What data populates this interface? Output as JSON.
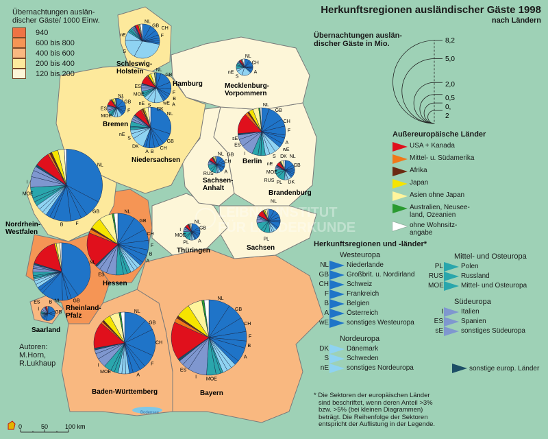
{
  "title": "Herkunftsregionen ausländischer Gäste 1998",
  "subtitle": "nach Ländern",
  "density_legend": {
    "title": "Übernachtungen ausländischer Gäste/ 1000 Einw.",
    "title_line1": "Übernachtungen auslän-",
    "title_line2": "discher Gäste/ 1000 Einw.",
    "classes": [
      {
        "label": "940",
        "color": "#ee7344"
      },
      {
        "label": "600 bis 800",
        "color": "#f59555"
      },
      {
        "label": "400 bis 600",
        "color": "#f9b880"
      },
      {
        "label": "200 bis 400",
        "color": "#fde99c"
      },
      {
        "label": "120 bis 200",
        "color": "#fdf6d8"
      }
    ]
  },
  "size_legend": {
    "title_line1": "Übernachtungen auslän-",
    "title_line2": "discher Gäste in Mio.",
    "values": [
      "8,2",
      "5,0",
      "2,0",
      "0,5",
      "0,",
      "2"
    ],
    "circles": [
      8.2,
      5.0,
      2.0,
      1.0,
      0.5,
      0.2
    ]
  },
  "non_european": {
    "title": "Außereuropäische Länder",
    "items": [
      {
        "label": "USA + Kanada",
        "color": "#e0101c"
      },
      {
        "label": "Mittel- u. Südamerika",
        "color": "#f07818"
      },
      {
        "label": "Afrika",
        "color": "#6b2a12"
      },
      {
        "label": "Japan",
        "color": "#f6e400"
      },
      {
        "label": "Asien ohne Japan",
        "color": "#fff59c"
      },
      {
        "label": "Australien, Neusee-land, Ozeanien",
        "color": "#2a9a30"
      },
      {
        "label": "ohne Wohnsitz-angabe",
        "color": "#ffffff"
      }
    ]
  },
  "origin_legend": {
    "title": "Herkunftsregionen und -länder*",
    "groups": [
      {
        "name": "Westeuropa",
        "color": "#1f74c8",
        "items": [
          {
            "code": "NL",
            "label": "Niederlande"
          },
          {
            "code": "GB",
            "label": "Großbrit. u. Nordirland"
          },
          {
            "code": "CH",
            "label": "Schweiz"
          },
          {
            "code": "F",
            "label": "Frankreich"
          },
          {
            "code": "B",
            "label": "Belgien"
          },
          {
            "code": "A",
            "label": "Österreich"
          },
          {
            "code": "wE",
            "label": "sonstiges Westeuropa"
          }
        ]
      },
      {
        "name": "Nordeuropa",
        "color": "#8fd3f2",
        "items": [
          {
            "code": "DK",
            "label": "Dänemark"
          },
          {
            "code": "S",
            "label": "Schweden"
          },
          {
            "code": "nE",
            "label": "sonstiges Nordeuropa"
          }
        ]
      },
      {
        "name": "Mittel- und Osteuropa",
        "color": "#2aa6ac",
        "items": [
          {
            "code": "PL",
            "label": "Polen"
          },
          {
            "code": "RUS",
            "label": "Russland"
          },
          {
            "code": "MOE",
            "label": "Mittel- und Osteuropa"
          }
        ]
      },
      {
        "name": "Südeuropa",
        "color": "#7f97cf",
        "items": [
          {
            "code": "I",
            "label": "Italien"
          },
          {
            "code": "ES",
            "label": "Spanien"
          },
          {
            "code": "sE",
            "label": "sonstiges Südeuropa"
          }
        ]
      }
    ],
    "other": {
      "label": "sonstige europ. Länder",
      "color": "#1d4f66"
    }
  },
  "footnote": [
    "* Die Sektoren der europäischen Länder",
    "sind beschriftet, wenn deren Anteil >3%",
    "bzw. >5% (bei kleinen Diagrammen)",
    "beträgt. Die Reihenfolge der Sektoren",
    "entspricht der Auflistung in der Legende."
  ],
  "authors": [
    "Autoren:",
    "M.Horn,",
    "R.Lukhaup"
  ],
  "scale": {
    "labels": [
      "0",
      "50",
      "100 km"
    ]
  },
  "watermark": [
    "LEIBNIZ-INSTITUT",
    "FÜR LÄNDERKUNDE"
  ],
  "lake_label": "Bodensee",
  "chart_data": {
    "type": "pie",
    "categories": [
      "NL",
      "GB",
      "CH",
      "F",
      "B",
      "A",
      "wE",
      "DK",
      "S",
      "nE",
      "PL",
      "RUS",
      "MOE",
      "I",
      "ES",
      "sE",
      "sonstige europ.",
      "USA + Kanada",
      "Mittel- u. Südamerika",
      "Afrika",
      "Japan",
      "Asien ohne Japan",
      "Australien",
      "ohne Wohnsitzangabe"
    ],
    "states": [
      {
        "name": "Schleswig-Holstein",
        "density": "200 bis 400",
        "total_mio": 1.7,
        "shares": [
          8,
          6,
          5,
          3,
          2,
          2,
          2,
          30,
          18,
          8,
          2,
          1,
          2,
          1,
          1,
          1,
          1,
          3,
          0,
          0,
          1,
          1,
          0,
          2
        ]
      },
      {
        "name": "Hamburg",
        "density": "940",
        "total_mio": 1.3,
        "shares": [
          5,
          14,
          7,
          6,
          3,
          4,
          3,
          10,
          8,
          4,
          2,
          2,
          3,
          4,
          3,
          1,
          1,
          9,
          1,
          1,
          3,
          4,
          1,
          1
        ]
      },
      {
        "name": "Mecklenburg-Vorpommern",
        "density": "120 bis 200",
        "total_mio": 0.4,
        "shares": [
          10,
          4,
          9,
          3,
          2,
          6,
          3,
          18,
          12,
          5,
          6,
          2,
          4,
          2,
          1,
          1,
          1,
          4,
          0,
          0,
          1,
          2,
          0,
          4
        ]
      },
      {
        "name": "Bremen",
        "density": "200 bis 400",
        "total_mio": 0.5,
        "shares": [
          12,
          10,
          4,
          5,
          3,
          3,
          3,
          8,
          5,
          4,
          3,
          2,
          5,
          4,
          6,
          2,
          1,
          10,
          1,
          1,
          3,
          3,
          1,
          1
        ]
      },
      {
        "name": "Niedersachsen",
        "density": "200 bis 400",
        "total_mio": 2.4,
        "shares": [
          30,
          9,
          4,
          4,
          4,
          3,
          2,
          10,
          4,
          3,
          2,
          1,
          4,
          2,
          2,
          1,
          1,
          6,
          1,
          1,
          1,
          3,
          0,
          2
        ]
      },
      {
        "name": "Berlin",
        "density": "120 bis 200",
        "total_mio": 3.3,
        "shares": [
          5,
          11,
          5,
          6,
          2,
          4,
          3,
          4,
          4,
          3,
          3,
          2,
          4,
          8,
          5,
          3,
          1,
          14,
          2,
          1,
          3,
          4,
          1,
          1
        ]
      },
      {
        "name": "Sachsen-Anhalt",
        "density": "120 bis 200",
        "total_mio": 0.4,
        "shares": [
          12,
          6,
          5,
          6,
          3,
          6,
          3,
          4,
          3,
          3,
          8,
          6,
          10,
          4,
          3,
          1,
          1,
          7,
          1,
          1,
          2,
          3,
          0,
          2
        ]
      },
      {
        "name": "Brandenburg",
        "density": "120 bis 200",
        "total_mio": 0.55,
        "shares": [
          16,
          5,
          4,
          4,
          3,
          4,
          3,
          6,
          3,
          3,
          12,
          6,
          8,
          3,
          2,
          1,
          1,
          6,
          1,
          1,
          1,
          4,
          0,
          3
        ]
      },
      {
        "name": "Nordrhein-Westfalen",
        "density": "200 bis 400",
        "total_mio": 7.5,
        "shares": [
          34,
          8,
          3,
          5,
          8,
          2,
          2,
          2,
          2,
          2,
          2,
          2,
          5,
          5,
          3,
          2,
          1,
          7,
          1,
          1,
          3,
          3,
          0,
          1
        ]
      },
      {
        "name": "Hessen",
        "density": "600 bis 800",
        "total_mio": 5.5,
        "shares": [
          9,
          8,
          6,
          5,
          3,
          4,
          2,
          2,
          2,
          2,
          2,
          2,
          4,
          5,
          4,
          2,
          1,
          18,
          2,
          1,
          6,
          7,
          1,
          2
        ]
      },
      {
        "name": "Thüringen",
        "density": "120 bis 200",
        "total_mio": 0.4,
        "shares": [
          16,
          6,
          6,
          4,
          3,
          6,
          3,
          4,
          3,
          3,
          7,
          4,
          10,
          5,
          3,
          1,
          1,
          6,
          1,
          1,
          1,
          3,
          0,
          2
        ]
      },
      {
        "name": "Sachsen",
        "density": "120 bis 200",
        "total_mio": 0.8,
        "shares": [
          8,
          6,
          6,
          5,
          2,
          8,
          3,
          4,
          3,
          3,
          8,
          5,
          11,
          5,
          3,
          2,
          1,
          8,
          1,
          1,
          2,
          3,
          0,
          2
        ]
      },
      {
        "name": "Rheinland-Pfalz",
        "density": "600 bis 800",
        "total_mio": 4.8,
        "shares": [
          40,
          4,
          2,
          3,
          12,
          2,
          2,
          2,
          2,
          1,
          1,
          1,
          2,
          2,
          1,
          1,
          1,
          16,
          0,
          0,
          1,
          2,
          0,
          1
        ]
      },
      {
        "name": "Saarland",
        "density": "400 bis 600",
        "total_mio": 0.3,
        "shares": [
          20,
          5,
          5,
          24,
          6,
          4,
          3,
          2,
          2,
          2,
          2,
          2,
          3,
          5,
          6,
          2,
          1,
          4,
          0,
          0,
          0,
          2,
          0,
          0
        ]
      },
      {
        "name": "Baden-Württemberg",
        "density": "400 bis 600",
        "total_mio": 5.5,
        "shares": [
          12,
          6,
          14,
          7,
          3,
          4,
          2,
          2,
          2,
          2,
          2,
          2,
          4,
          5,
          3,
          2,
          1,
          14,
          1,
          1,
          4,
          5,
          1,
          2
        ]
      },
      {
        "name": "Bayern",
        "density": "400 bis 600",
        "total_mio": 8.2,
        "shares": [
          9,
          7,
          6,
          4,
          3,
          6,
          2,
          2,
          2,
          2,
          1,
          2,
          4,
          8,
          3,
          2,
          1,
          16,
          2,
          1,
          6,
          6,
          1,
          2
        ]
      }
    ]
  }
}
